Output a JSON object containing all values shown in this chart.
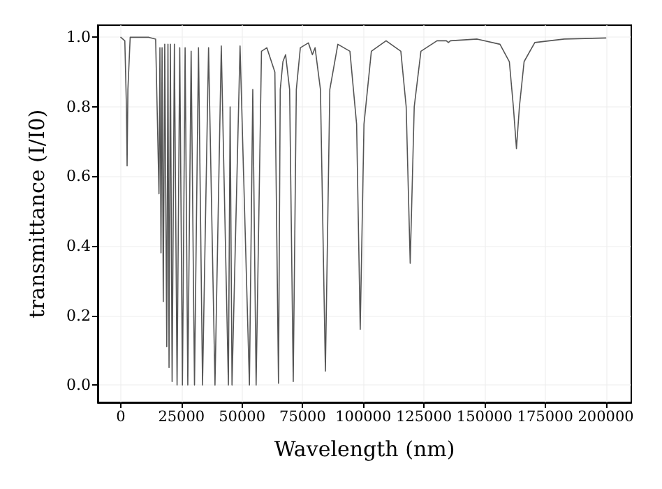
{
  "chart_data": {
    "type": "line",
    "xlabel": "Wavelength (nm)",
    "ylabel": "transmittance (I/I0)",
    "xlim": [
      -9500,
      210500
    ],
    "ylim": [
      -0.05,
      1.035
    ],
    "xticks": [
      0,
      25000,
      50000,
      75000,
      100000,
      125000,
      150000,
      175000,
      200000
    ],
    "yticks": [
      {
        "value": 0,
        "label": "0.0"
      },
      {
        "value": 0.2,
        "label": "0.2"
      },
      {
        "value": 0.4,
        "label": "0.4"
      },
      {
        "value": 0.6,
        "label": "0.6"
      },
      {
        "value": 0.8,
        "label": "0.8"
      },
      {
        "value": 1,
        "label": "1.0"
      }
    ],
    "grid": true,
    "marker": "none",
    "line_style": "solid",
    "series": [
      {
        "color": "#555555",
        "x": [
          0,
          1658,
          2320,
          2597,
          2930,
          3868,
          11603,
          14365,
          15746,
          16133,
          16575,
          17017,
          17514,
          18122,
          18951,
          19448,
          19890,
          20443,
          21161,
          22100,
          23205,
          24310,
          25415,
          26520,
          27625,
          29006,
          30388,
          32045,
          33703,
          36189,
          38841,
          41438,
          44366,
          45084,
          45858,
          49173,
          53040,
          54421,
          55803,
          58013,
          60221,
          63535,
          65029,
          65747,
          66852,
          67957,
          69615,
          71108,
          72379,
          74035,
          77350,
          79008,
          80113,
          82323,
          84367,
          86190,
          89505,
          94478,
          97240,
          98732,
          100278,
          103318,
          109395,
          115473,
          117683,
          119340,
          120998,
          123760,
          130390,
          134258,
          135086,
          135915,
          146965,
          156358,
          160225,
          161883,
          163153,
          164369,
          166303,
          170723,
          182878,
          200000
        ],
        "values": [
          1.0,
          0.99,
          0.8,
          0.63,
          0.85,
          1.0,
          1.0,
          0.995,
          0.55,
          0.97,
          0.38,
          0.97,
          0.24,
          0.98,
          0.11,
          0.98,
          0.05,
          0.98,
          0.01,
          0.98,
          0.0,
          0.97,
          0.0,
          0.97,
          0.0,
          0.96,
          0.0,
          0.97,
          0.0,
          0.97,
          0.0,
          0.975,
          0.0,
          0.8,
          0.0,
          0.975,
          0.0,
          0.85,
          0.0,
          0.96,
          0.97,
          0.9,
          0.005,
          0.85,
          0.93,
          0.95,
          0.85,
          0.01,
          0.85,
          0.97,
          0.984,
          0.95,
          0.97,
          0.85,
          0.04,
          0.85,
          0.98,
          0.96,
          0.75,
          0.16,
          0.75,
          0.96,
          0.99,
          0.96,
          0.8,
          0.35,
          0.8,
          0.96,
          0.99,
          0.99,
          0.985,
          0.99,
          0.995,
          0.98,
          0.93,
          0.8,
          0.68,
          0.8,
          0.93,
          0.985,
          0.995,
          0.998
        ]
      }
    ]
  }
}
